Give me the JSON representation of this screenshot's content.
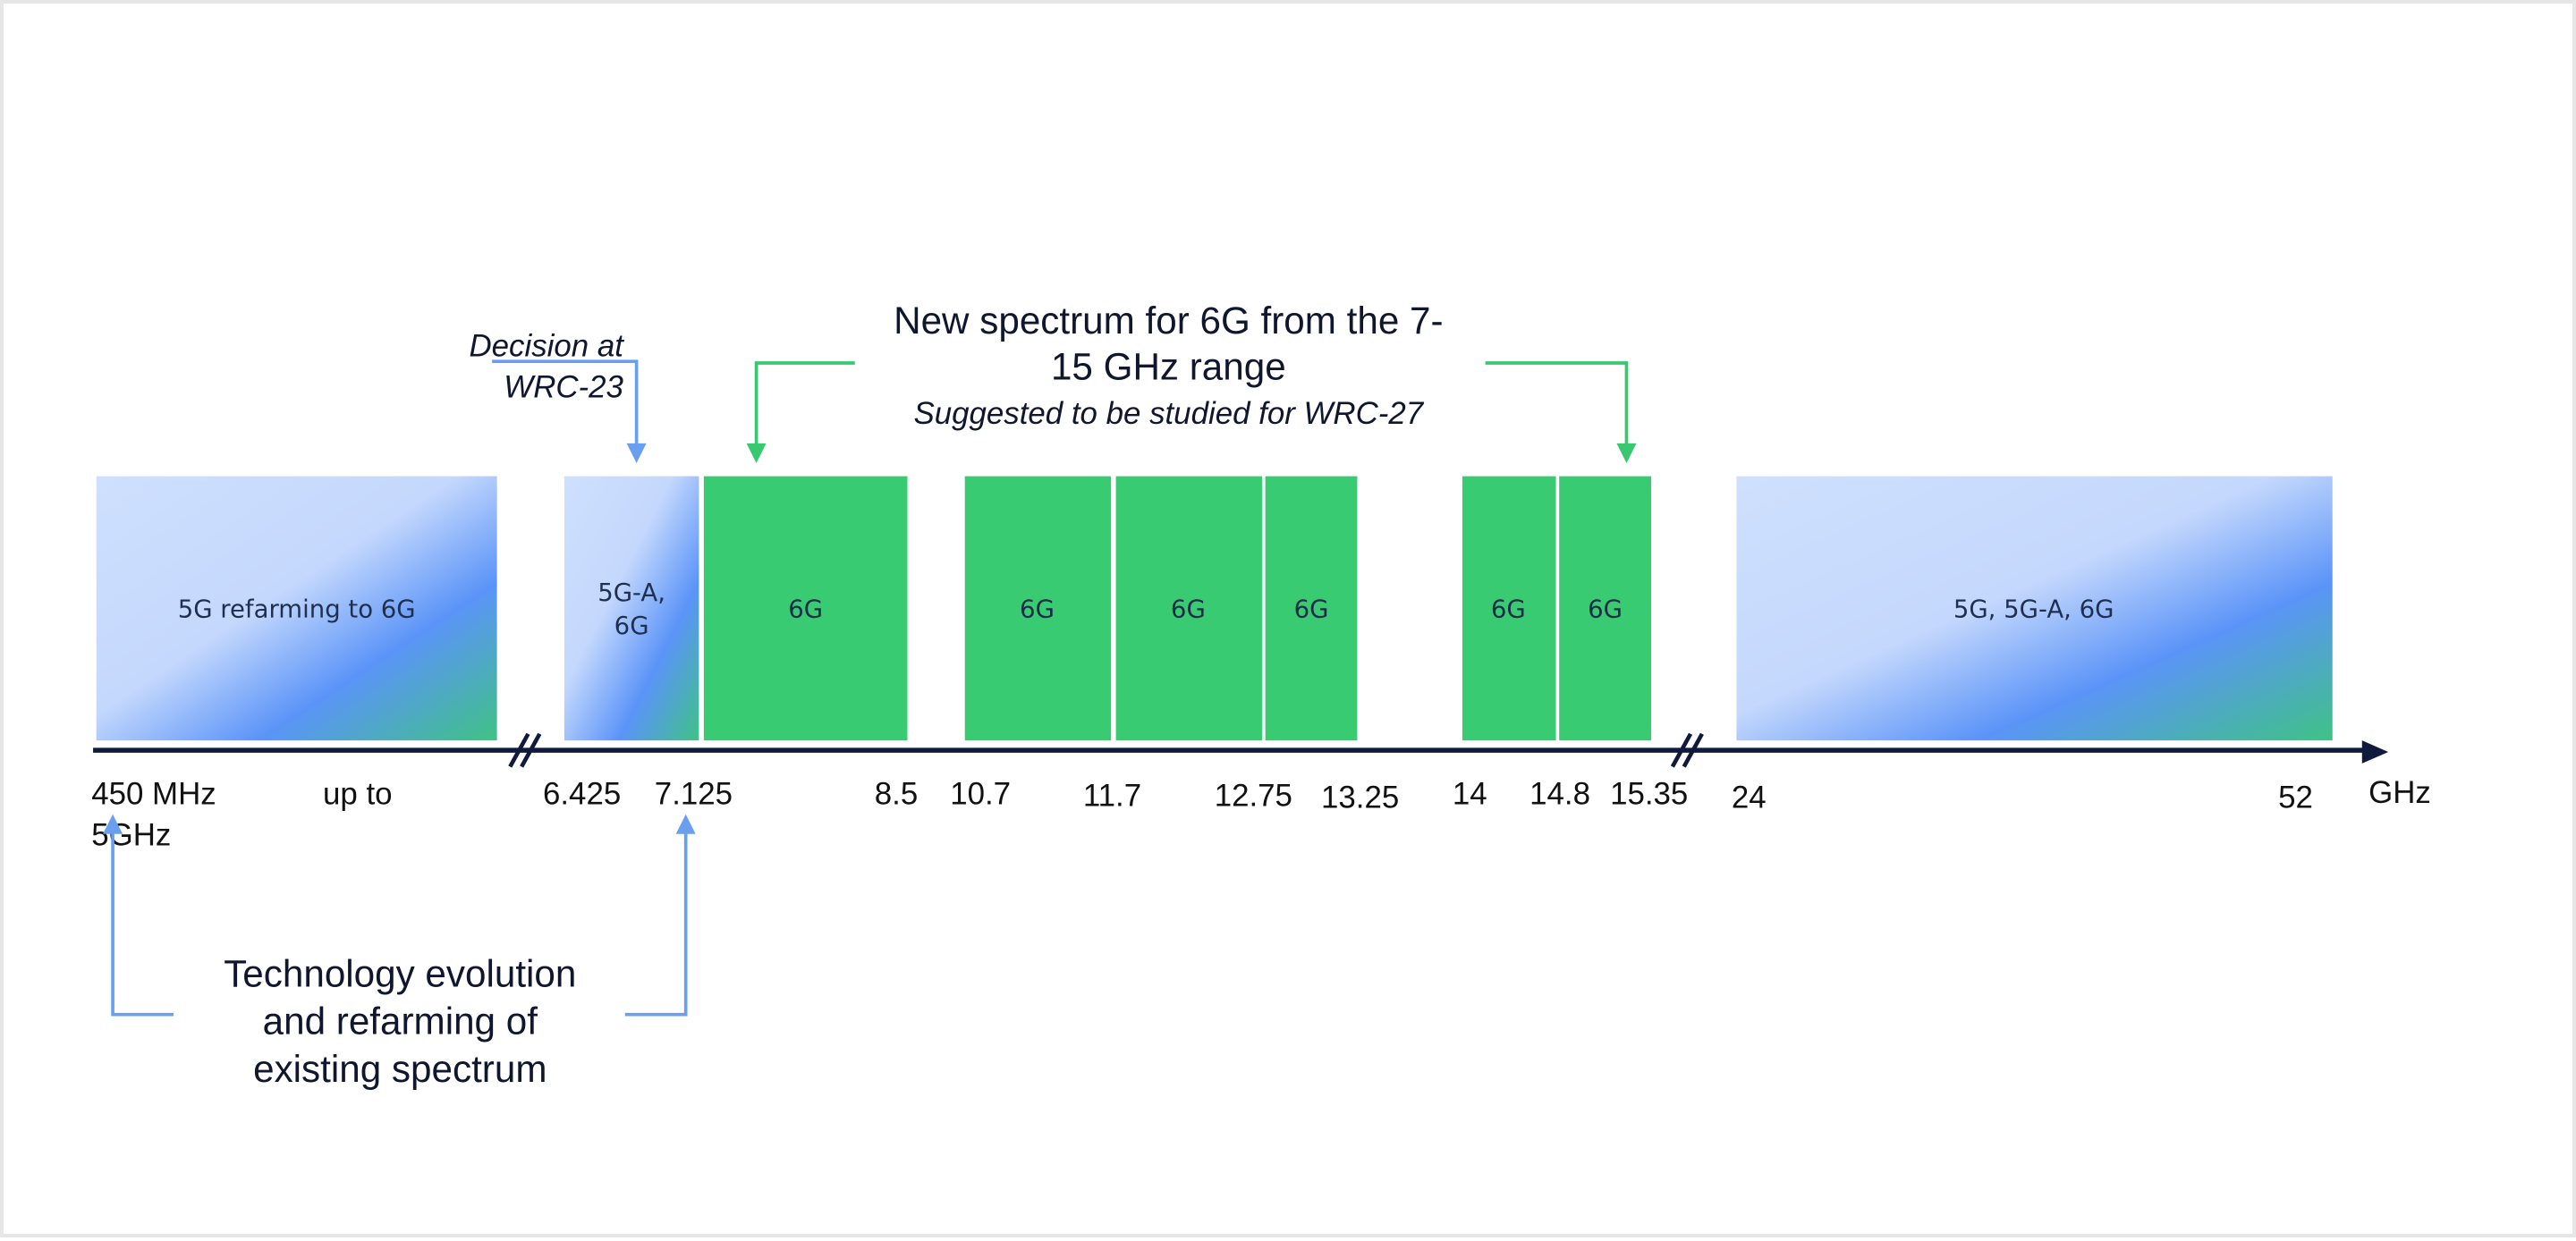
{
  "top_callout": {
    "heading_lines": [
      "New spectrum for 6G from the 7-",
      "15 GHz range"
    ],
    "note": "Suggested to be studied for WRC-27",
    "color": "#37c870"
  },
  "decision_callout": {
    "lines": [
      "Decision at",
      "WRC-23"
    ],
    "color": "#6a9ff0"
  },
  "bottom_callout": {
    "lines": [
      "Technology evolution",
      "and refarming of",
      "existing spectrum"
    ],
    "color": "#6a9ff0"
  },
  "blocks": [
    {
      "label_lines": [
        "5G refarming to 6G"
      ],
      "fill": "gradient"
    },
    {
      "label_lines": [
        "5G-A,",
        "6G"
      ],
      "fill": "gradient"
    },
    {
      "label_lines": [
        "6G"
      ],
      "fill": "green"
    },
    {
      "label_lines": [
        "6G"
      ],
      "fill": "green"
    },
    {
      "label_lines": [
        "6G"
      ],
      "fill": "green"
    },
    {
      "label_lines": [
        "6G"
      ],
      "fill": "green"
    },
    {
      "label_lines": [
        "6G"
      ],
      "fill": "green"
    },
    {
      "label_lines": [
        "6G"
      ],
      "fill": "green"
    },
    {
      "label_lines": [
        "5G, 5G-A, 6G"
      ],
      "fill": "gradient"
    }
  ],
  "axis": {
    "unit": "GHz",
    "ticks": [
      {
        "lines": [
          "450 MHz",
          "5GHz"
        ]
      },
      {
        "lines": [
          "up to"
        ]
      },
      {
        "lines": [
          "6.425"
        ]
      },
      {
        "lines": [
          "7.125"
        ]
      },
      {
        "lines": [
          "8.5"
        ]
      },
      {
        "lines": [
          "10.7"
        ]
      },
      {
        "lines": [
          "11.7"
        ]
      },
      {
        "lines": [
          "12.75"
        ]
      },
      {
        "lines": [
          "13.25"
        ]
      },
      {
        "lines": [
          "14"
        ]
      },
      {
        "lines": [
          "14.8"
        ]
      },
      {
        "lines": [
          "15.35"
        ]
      },
      {
        "lines": [
          "24"
        ]
      },
      {
        "lines": [
          "52"
        ]
      }
    ],
    "color": "#0f1a3c"
  },
  "colors": {
    "green": "#38cb72",
    "gradient_stops": [
      "#cfe0fd",
      "#c4d8fd",
      "#5b94f8",
      "#3fc286"
    ],
    "arrow_blue": "#6a9ff0",
    "arrow_green": "#37c870"
  }
}
